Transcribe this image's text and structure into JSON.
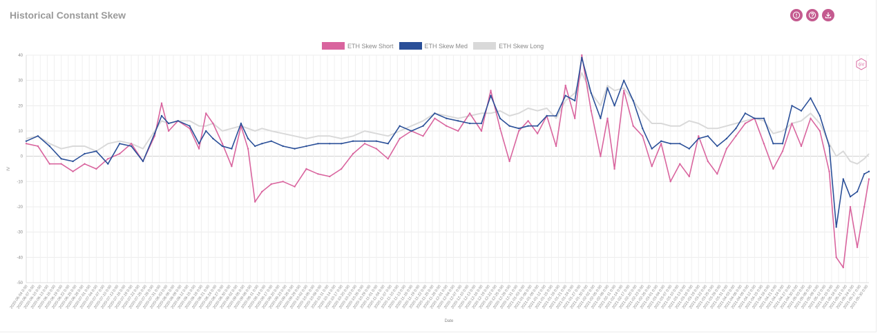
{
  "header": {
    "title": "Historical Constant Skew"
  },
  "toolbar": {
    "icons": [
      "info-icon",
      "help-icon",
      "download-icon"
    ]
  },
  "colors": {
    "short": "#d9649e",
    "med": "#2a4f98",
    "long": "#d9d9d9",
    "accent": "#c45a8f"
  },
  "chart_data": {
    "type": "line",
    "title": "",
    "xlabel": "Date",
    "ylabel": "IV",
    "ylim": [
      -50,
      40
    ],
    "yticks": [
      40,
      30,
      20,
      10,
      0,
      -10,
      -20,
      -30,
      -40,
      -50
    ],
    "legend_position": "top-center",
    "grid": true,
    "x_start": "2020-06-04",
    "x_end": "2021-05-31",
    "x_tick_every_days": 3,
    "x_tick_time": "0:00",
    "series": [
      {
        "name": "ETH Skew Short",
        "color": "#d9649e",
        "points": [
          [
            "2020-06-04",
            5
          ],
          [
            "2020-06-09",
            4
          ],
          [
            "2020-06-14",
            -3
          ],
          [
            "2020-06-19",
            -3
          ],
          [
            "2020-06-24",
            -6
          ],
          [
            "2020-06-29",
            -3
          ],
          [
            "2020-07-04",
            -5
          ],
          [
            "2020-07-09",
            -1
          ],
          [
            "2020-07-14",
            1
          ],
          [
            "2020-07-19",
            5
          ],
          [
            "2020-07-24",
            -2
          ],
          [
            "2020-07-29",
            8
          ],
          [
            "2020-08-01",
            21
          ],
          [
            "2020-08-04",
            10
          ],
          [
            "2020-08-08",
            14
          ],
          [
            "2020-08-13",
            11
          ],
          [
            "2020-08-17",
            3
          ],
          [
            "2020-08-20",
            17
          ],
          [
            "2020-08-23",
            13
          ],
          [
            "2020-08-27",
            5
          ],
          [
            "2020-08-31",
            -4
          ],
          [
            "2020-09-04",
            12
          ],
          [
            "2020-09-07",
            3
          ],
          [
            "2020-09-10",
            -18
          ],
          [
            "2020-09-13",
            -14
          ],
          [
            "2020-09-17",
            -11
          ],
          [
            "2020-09-22",
            -10
          ],
          [
            "2020-09-27",
            -12
          ],
          [
            "2020-10-02",
            -5
          ],
          [
            "2020-10-07",
            -7
          ],
          [
            "2020-10-12",
            -8
          ],
          [
            "2020-10-17",
            -5
          ],
          [
            "2020-10-22",
            1
          ],
          [
            "2020-10-27",
            5
          ],
          [
            "2020-11-01",
            3
          ],
          [
            "2020-11-06",
            -1
          ],
          [
            "2020-11-11",
            7
          ],
          [
            "2020-11-16",
            10
          ],
          [
            "2020-11-21",
            8
          ],
          [
            "2020-11-26",
            15
          ],
          [
            "2020-12-01",
            12
          ],
          [
            "2020-12-06",
            10
          ],
          [
            "2020-12-11",
            17
          ],
          [
            "2020-12-16",
            10
          ],
          [
            "2020-12-20",
            26
          ],
          [
            "2020-12-24",
            11
          ],
          [
            "2020-12-28",
            -2
          ],
          [
            "2021-01-01",
            10
          ],
          [
            "2021-01-05",
            14
          ],
          [
            "2021-01-09",
            9
          ],
          [
            "2021-01-13",
            16
          ],
          [
            "2021-01-17",
            4
          ],
          [
            "2021-01-21",
            28
          ],
          [
            "2021-01-25",
            15
          ],
          [
            "2021-01-28",
            40
          ],
          [
            "2021-02-01",
            18
          ],
          [
            "2021-02-05",
            0
          ],
          [
            "2021-02-08",
            15
          ],
          [
            "2021-02-11",
            -5
          ],
          [
            "2021-02-15",
            26
          ],
          [
            "2021-02-19",
            12
          ],
          [
            "2021-02-23",
            8
          ],
          [
            "2021-02-27",
            -4
          ],
          [
            "2021-03-03",
            5
          ],
          [
            "2021-03-07",
            -10
          ],
          [
            "2021-03-11",
            -3
          ],
          [
            "2021-03-15",
            -8
          ],
          [
            "2021-03-19",
            8
          ],
          [
            "2021-03-23",
            -2
          ],
          [
            "2021-03-27",
            -7
          ],
          [
            "2021-03-31",
            3
          ],
          [
            "2021-04-04",
            8
          ],
          [
            "2021-04-08",
            13
          ],
          [
            "2021-04-12",
            15
          ],
          [
            "2021-04-16",
            5
          ],
          [
            "2021-04-20",
            -5
          ],
          [
            "2021-04-24",
            2
          ],
          [
            "2021-04-28",
            13
          ],
          [
            "2021-05-02",
            4
          ],
          [
            "2021-05-06",
            15
          ],
          [
            "2021-05-10",
            10
          ],
          [
            "2021-05-14",
            -6
          ],
          [
            "2021-05-17",
            -40
          ],
          [
            "2021-05-20",
            -44
          ],
          [
            "2021-05-23",
            -20
          ],
          [
            "2021-05-26",
            -36
          ],
          [
            "2021-05-29",
            -20
          ],
          [
            "2021-05-31",
            -9
          ]
        ]
      },
      {
        "name": "ETH Skew Med",
        "color": "#2a4f98",
        "points": [
          [
            "2020-06-04",
            6
          ],
          [
            "2020-06-09",
            8
          ],
          [
            "2020-06-14",
            4
          ],
          [
            "2020-06-19",
            -1
          ],
          [
            "2020-06-24",
            -2
          ],
          [
            "2020-06-29",
            1
          ],
          [
            "2020-07-04",
            2
          ],
          [
            "2020-07-09",
            -3
          ],
          [
            "2020-07-14",
            5
          ],
          [
            "2020-07-19",
            4
          ],
          [
            "2020-07-24",
            -2
          ],
          [
            "2020-07-29",
            9
          ],
          [
            "2020-08-01",
            16
          ],
          [
            "2020-08-04",
            13
          ],
          [
            "2020-08-08",
            14
          ],
          [
            "2020-08-13",
            12
          ],
          [
            "2020-08-17",
            5
          ],
          [
            "2020-08-20",
            10
          ],
          [
            "2020-08-23",
            7
          ],
          [
            "2020-08-27",
            4
          ],
          [
            "2020-08-31",
            3
          ],
          [
            "2020-09-04",
            13
          ],
          [
            "2020-09-07",
            7
          ],
          [
            "2020-09-10",
            4
          ],
          [
            "2020-09-13",
            5
          ],
          [
            "2020-09-17",
            6
          ],
          [
            "2020-09-22",
            4
          ],
          [
            "2020-09-27",
            3
          ],
          [
            "2020-10-02",
            4
          ],
          [
            "2020-10-07",
            5
          ],
          [
            "2020-10-12",
            5
          ],
          [
            "2020-10-17",
            5
          ],
          [
            "2020-10-22",
            6
          ],
          [
            "2020-10-27",
            6
          ],
          [
            "2020-11-01",
            6
          ],
          [
            "2020-11-06",
            5
          ],
          [
            "2020-11-11",
            12
          ],
          [
            "2020-11-16",
            10
          ],
          [
            "2020-11-21",
            12
          ],
          [
            "2020-11-26",
            17
          ],
          [
            "2020-12-01",
            15
          ],
          [
            "2020-12-06",
            14
          ],
          [
            "2020-12-11",
            13
          ],
          [
            "2020-12-16",
            13
          ],
          [
            "2020-12-20",
            24
          ],
          [
            "2020-12-24",
            15
          ],
          [
            "2020-12-28",
            12
          ],
          [
            "2021-01-01",
            11
          ],
          [
            "2021-01-05",
            12
          ],
          [
            "2021-01-09",
            12
          ],
          [
            "2021-01-13",
            16
          ],
          [
            "2021-01-17",
            16
          ],
          [
            "2021-01-21",
            24
          ],
          [
            "2021-01-25",
            22
          ],
          [
            "2021-01-28",
            39
          ],
          [
            "2021-02-01",
            25
          ],
          [
            "2021-02-05",
            15
          ],
          [
            "2021-02-08",
            27
          ],
          [
            "2021-02-11",
            20
          ],
          [
            "2021-02-15",
            30
          ],
          [
            "2021-02-19",
            22
          ],
          [
            "2021-02-23",
            11
          ],
          [
            "2021-02-27",
            3
          ],
          [
            "2021-03-03",
            6
          ],
          [
            "2021-03-07",
            5
          ],
          [
            "2021-03-11",
            5
          ],
          [
            "2021-03-15",
            3
          ],
          [
            "2021-03-19",
            7
          ],
          [
            "2021-03-23",
            8
          ],
          [
            "2021-03-27",
            4
          ],
          [
            "2021-03-31",
            7
          ],
          [
            "2021-04-04",
            11
          ],
          [
            "2021-04-08",
            17
          ],
          [
            "2021-04-12",
            15
          ],
          [
            "2021-04-16",
            15
          ],
          [
            "2021-04-20",
            5
          ],
          [
            "2021-04-24",
            5
          ],
          [
            "2021-04-28",
            20
          ],
          [
            "2021-05-02",
            18
          ],
          [
            "2021-05-06",
            23
          ],
          [
            "2021-05-10",
            16
          ],
          [
            "2021-05-14",
            4
          ],
          [
            "2021-05-17",
            -28
          ],
          [
            "2021-05-20",
            -9
          ],
          [
            "2021-05-23",
            -16
          ],
          [
            "2021-05-26",
            -14
          ],
          [
            "2021-05-29",
            -7
          ],
          [
            "2021-05-31",
            -6
          ]
        ]
      },
      {
        "name": "ETH Skew Long",
        "color": "#d9d9d9",
        "points": [
          [
            "2020-06-04",
            7
          ],
          [
            "2020-06-09",
            8
          ],
          [
            "2020-06-14",
            5
          ],
          [
            "2020-06-19",
            3
          ],
          [
            "2020-06-24",
            4
          ],
          [
            "2020-06-29",
            4
          ],
          [
            "2020-07-04",
            2
          ],
          [
            "2020-07-09",
            5
          ],
          [
            "2020-07-14",
            6
          ],
          [
            "2020-07-19",
            5
          ],
          [
            "2020-07-24",
            3
          ],
          [
            "2020-07-29",
            10
          ],
          [
            "2020-08-01",
            14
          ],
          [
            "2020-08-04",
            13
          ],
          [
            "2020-08-08",
            14
          ],
          [
            "2020-08-13",
            14
          ],
          [
            "2020-08-17",
            12
          ],
          [
            "2020-08-20",
            12
          ],
          [
            "2020-08-23",
            13
          ],
          [
            "2020-08-27",
            10
          ],
          [
            "2020-08-31",
            11
          ],
          [
            "2020-09-04",
            12
          ],
          [
            "2020-09-07",
            11
          ],
          [
            "2020-09-10",
            10
          ],
          [
            "2020-09-13",
            11
          ],
          [
            "2020-09-17",
            10
          ],
          [
            "2020-09-22",
            9
          ],
          [
            "2020-09-27",
            8
          ],
          [
            "2020-10-02",
            7
          ],
          [
            "2020-10-07",
            8
          ],
          [
            "2020-10-12",
            8
          ],
          [
            "2020-10-17",
            7
          ],
          [
            "2020-10-22",
            8
          ],
          [
            "2020-10-27",
            10
          ],
          [
            "2020-11-01",
            9
          ],
          [
            "2020-11-06",
            8
          ],
          [
            "2020-11-11",
            10
          ],
          [
            "2020-11-16",
            12
          ],
          [
            "2020-11-21",
            14
          ],
          [
            "2020-11-26",
            17
          ],
          [
            "2020-12-01",
            16
          ],
          [
            "2020-12-06",
            15
          ],
          [
            "2020-12-11",
            16
          ],
          [
            "2020-12-16",
            17
          ],
          [
            "2020-12-20",
            17
          ],
          [
            "2020-12-24",
            18
          ],
          [
            "2020-12-28",
            16
          ],
          [
            "2021-01-01",
            17
          ],
          [
            "2021-01-05",
            19
          ],
          [
            "2021-01-09",
            18
          ],
          [
            "2021-01-13",
            19
          ],
          [
            "2021-01-17",
            15
          ],
          [
            "2021-01-21",
            22
          ],
          [
            "2021-01-25",
            25
          ],
          [
            "2021-01-28",
            33
          ],
          [
            "2021-02-01",
            25
          ],
          [
            "2021-02-05",
            20
          ],
          [
            "2021-02-08",
            28
          ],
          [
            "2021-02-11",
            26
          ],
          [
            "2021-02-15",
            27
          ],
          [
            "2021-02-19",
            22
          ],
          [
            "2021-02-23",
            17
          ],
          [
            "2021-02-27",
            13
          ],
          [
            "2021-03-03",
            13
          ],
          [
            "2021-03-07",
            12
          ],
          [
            "2021-03-11",
            12
          ],
          [
            "2021-03-15",
            14
          ],
          [
            "2021-03-19",
            13
          ],
          [
            "2021-03-23",
            11
          ],
          [
            "2021-03-27",
            11
          ],
          [
            "2021-03-31",
            12
          ],
          [
            "2021-04-04",
            13
          ],
          [
            "2021-04-08",
            14
          ],
          [
            "2021-04-12",
            15
          ],
          [
            "2021-04-16",
            14
          ],
          [
            "2021-04-20",
            9
          ],
          [
            "2021-04-24",
            10
          ],
          [
            "2021-04-28",
            13
          ],
          [
            "2021-05-02",
            14
          ],
          [
            "2021-05-06",
            17
          ],
          [
            "2021-05-10",
            13
          ],
          [
            "2021-05-14",
            5
          ],
          [
            "2021-05-17",
            0
          ],
          [
            "2021-05-20",
            2
          ],
          [
            "2021-05-23",
            -2
          ],
          [
            "2021-05-26",
            -3
          ],
          [
            "2021-05-29",
            -1
          ],
          [
            "2021-05-31",
            1
          ]
        ]
      }
    ]
  }
}
